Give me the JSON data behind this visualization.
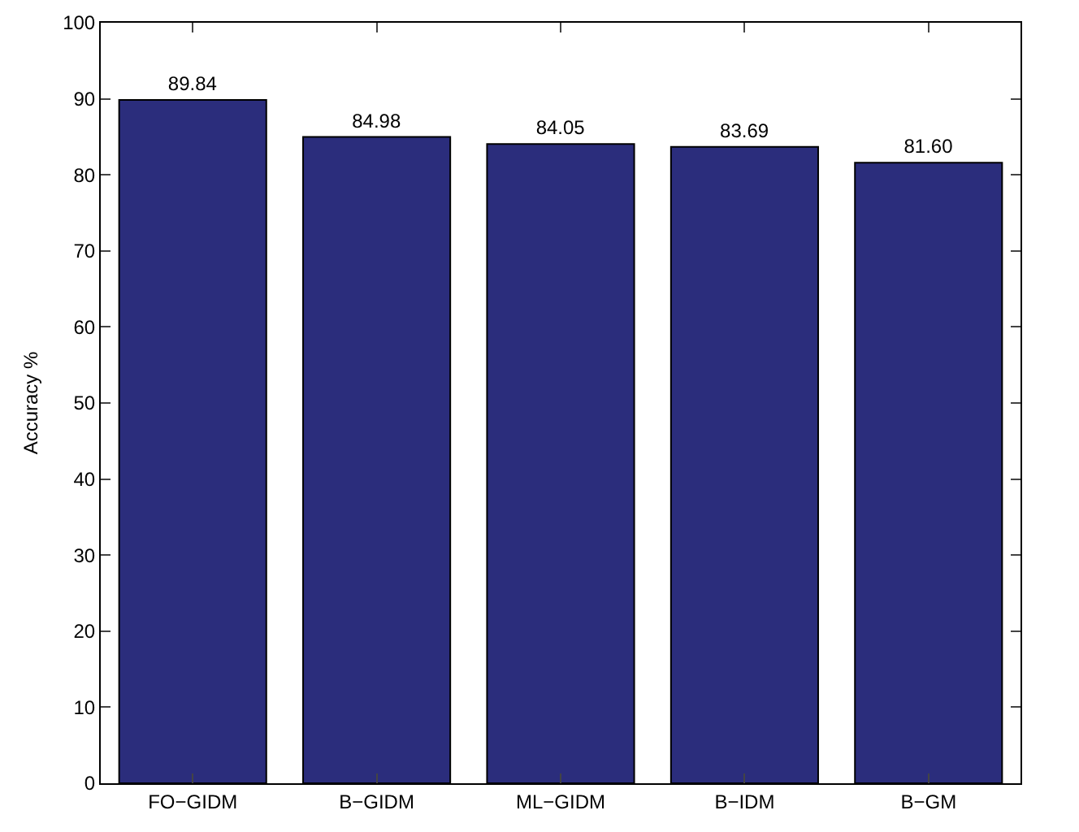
{
  "chart_data": {
    "type": "bar",
    "ylabel": "Accuracy %",
    "categories": [
      "FO−GIDM",
      "B−GIDM",
      "ML−GIDM",
      "B−IDM",
      "B−GM"
    ],
    "values": [
      89.84,
      84.98,
      84.05,
      83.69,
      81.6
    ],
    "value_labels": [
      "89.84",
      "84.98",
      "84.05",
      "83.69",
      "81.60"
    ],
    "color": "#2b2d7c",
    "ylim": [
      0,
      100
    ],
    "yticks": [
      0,
      10,
      20,
      30,
      40,
      50,
      60,
      70,
      80,
      90,
      100
    ],
    "grid": false
  }
}
